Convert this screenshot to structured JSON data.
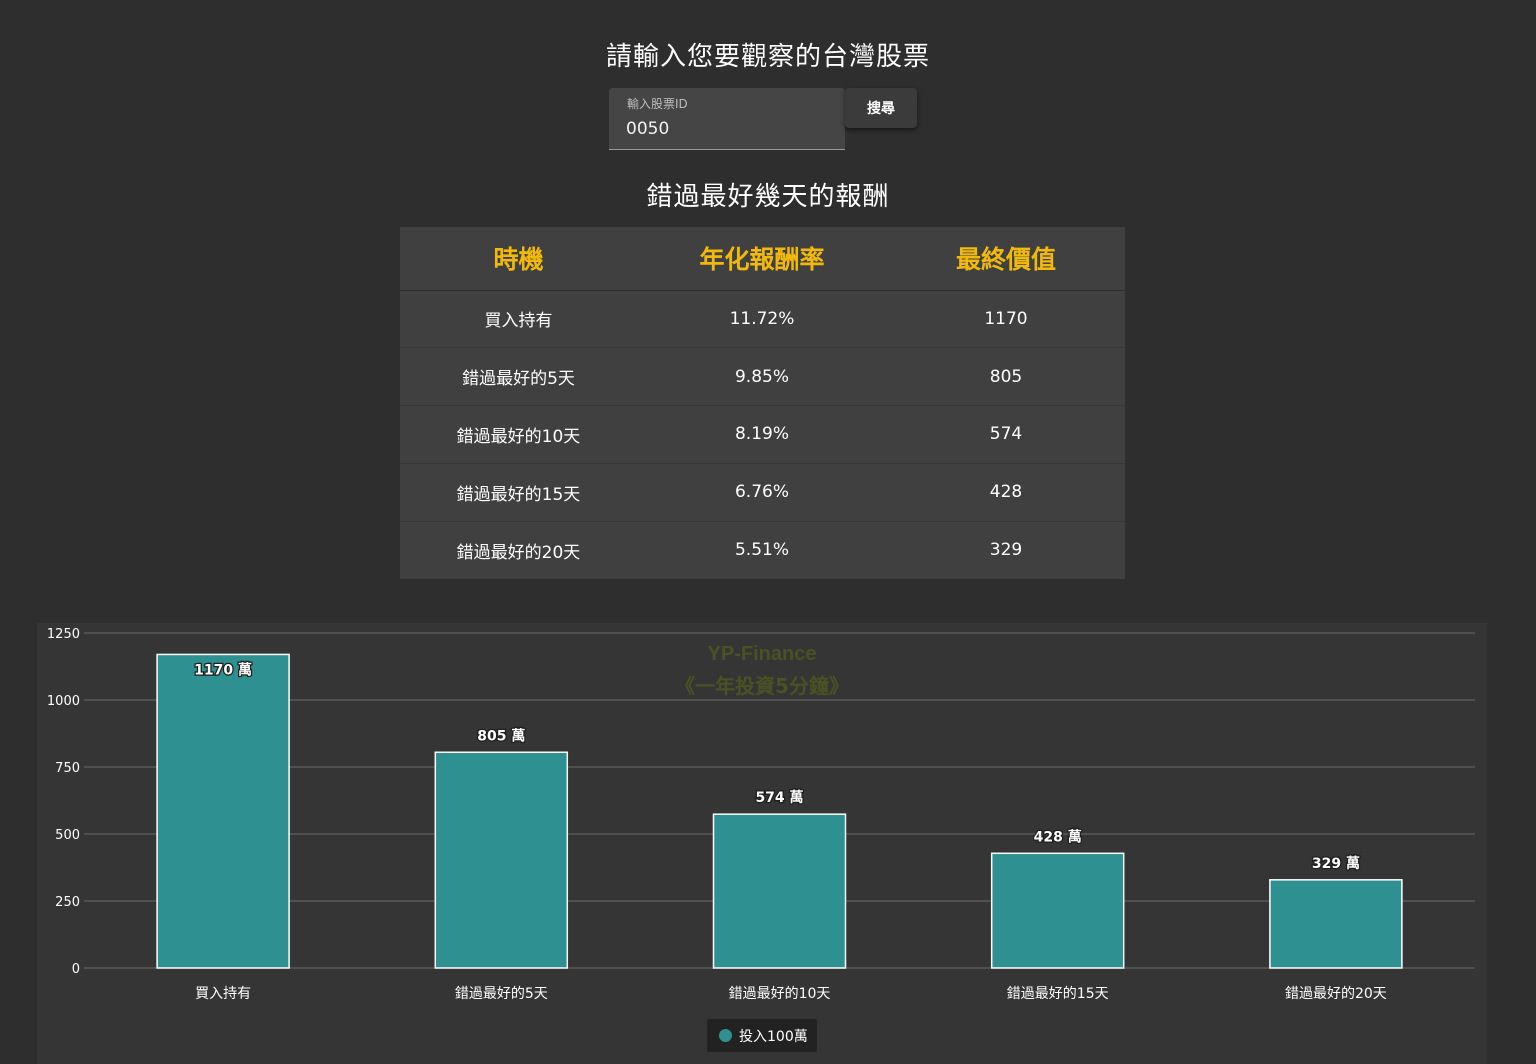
{
  "header": {
    "title": "請輸入您要觀察的台灣股票"
  },
  "search": {
    "label": "輸入股票ID",
    "value": "0050",
    "button_label": "搜尋"
  },
  "table": {
    "title": "錯過最好幾天的報酬",
    "headers": [
      "時機",
      "年化報酬率",
      "最終價值"
    ],
    "rows": [
      [
        "買入持有",
        "11.72%",
        "1170"
      ],
      [
        "錯過最好的5天",
        "9.85%",
        "805"
      ],
      [
        "錯過最好的10天",
        "8.19%",
        "574"
      ],
      [
        "錯過最好的15天",
        "6.76%",
        "428"
      ],
      [
        "錯過最好的20天",
        "5.51%",
        "329"
      ]
    ]
  },
  "chart_data": {
    "type": "bar",
    "categories": [
      "買入持有",
      "錯過最好的5天",
      "錯過最好的10天",
      "錯過最好的15天",
      "錯過最好的20天"
    ],
    "series": [
      {
        "name": "投入100萬",
        "values": [
          1170,
          805,
          574,
          428,
          329
        ],
        "color": "#2e9090"
      }
    ],
    "data_labels": [
      "1170 萬",
      "805 萬",
      "574 萬",
      "428 萬",
      "329 萬"
    ],
    "y_ticks": [
      0,
      250,
      500,
      750,
      1000,
      1250
    ],
    "ylim": [
      0,
      1250
    ],
    "grid": true,
    "legend": "bottom-center",
    "watermark": [
      "YP-Finance",
      "《一年投資5分鐘》"
    ]
  },
  "colors": {
    "background": "#2e2e2e",
    "table_bg": "#404040",
    "header_accent": "#f0b90b",
    "bar": "#2e9090",
    "watermark": "#4a5224"
  }
}
